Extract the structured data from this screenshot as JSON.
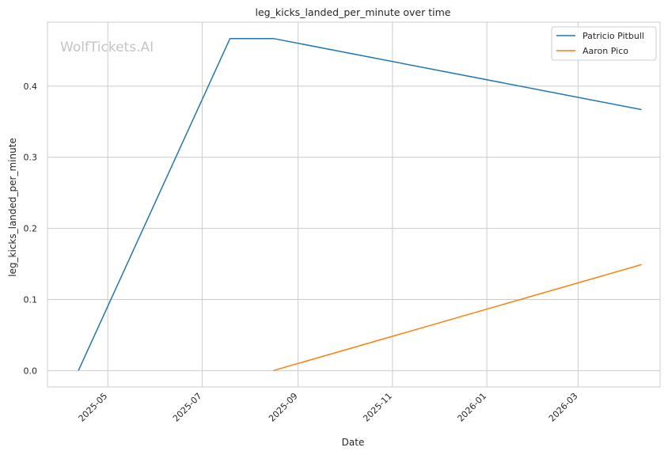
{
  "chart_data": {
    "type": "line",
    "title": "leg_kicks_landed_per_minute over time",
    "xlabel": "Date",
    "ylabel": "leg_kicks_landed_per_minute",
    "watermark": "WolfTickets.AI",
    "x_ticks": [
      "2025-05",
      "2025-07",
      "2025-09",
      "2025-11",
      "2026-01",
      "2026-03"
    ],
    "y_ticks": [
      "0.0",
      "0.1",
      "0.2",
      "0.3",
      "0.4"
    ],
    "xlim": [
      "2025-03-23",
      "2026-04-23"
    ],
    "ylim": [
      -0.023,
      0.49
    ],
    "grid": true,
    "legend_position": "top-right",
    "series": [
      {
        "name": "Patricio Pitbull",
        "color": "#1f77b4",
        "points": [
          {
            "date": "2025-04-12",
            "value": 0.0
          },
          {
            "date": "2025-07-19",
            "value": 0.467
          },
          {
            "date": "2025-08-16",
            "value": 0.467
          },
          {
            "date": "2026-04-11",
            "value": 0.367
          }
        ]
      },
      {
        "name": "Aaron Pico",
        "color": "#ff7f0e",
        "points": [
          {
            "date": "2025-08-16",
            "value": 0.0
          },
          {
            "date": "2026-04-11",
            "value": 0.149
          }
        ]
      }
    ]
  }
}
